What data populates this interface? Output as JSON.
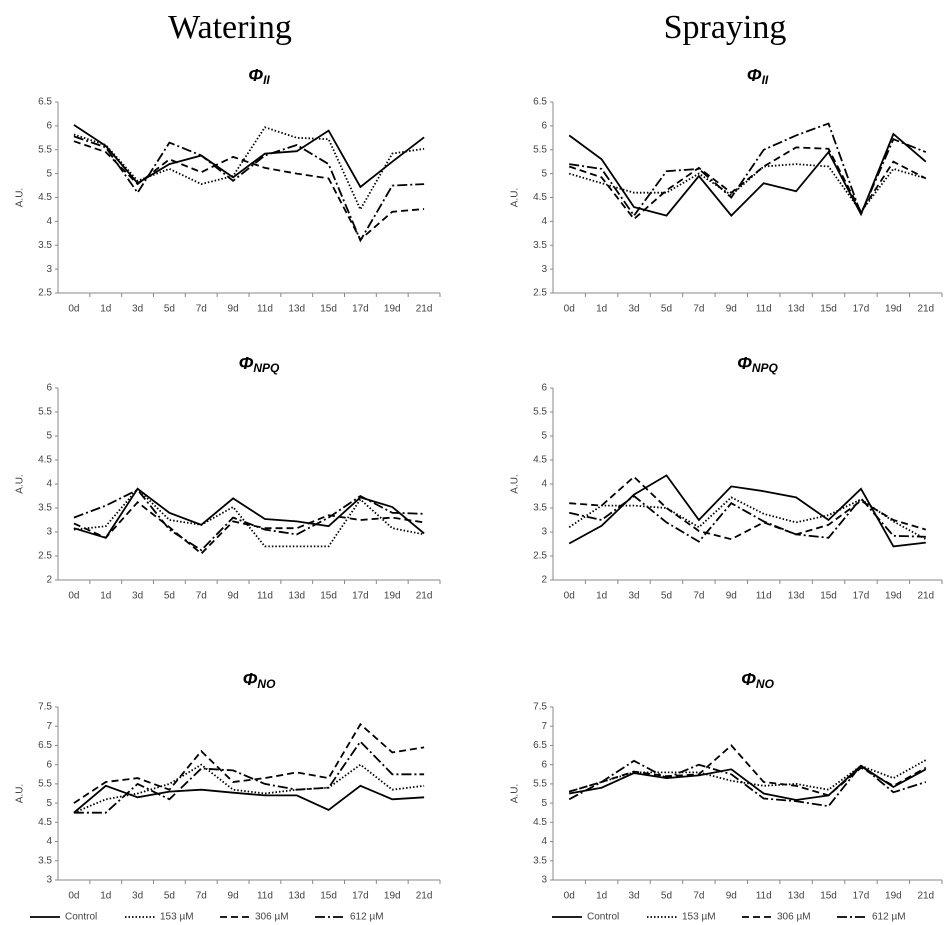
{
  "headings": [
    "Watering",
    "Spraying"
  ],
  "chart_data": [
    {
      "type": "line",
      "title": "Φ",
      "title_subscript": "II",
      "ylabel": "A.U.",
      "categories": [
        "0d",
        "1d",
        "3d",
        "5d",
        "7d",
        "9d",
        "11d",
        "13d",
        "15d",
        "17d",
        "19d",
        "21d"
      ],
      "ylim": [
        2.5,
        6.5
      ],
      "yticks": [
        2.5,
        3,
        3.5,
        4,
        4.5,
        5,
        5.5,
        6,
        6.5
      ],
      "series": [
        {
          "color": "#000000",
          "dash": "solid",
          "values": [
            6.02,
            5.58,
            4.8,
            5.2,
            5.38,
            4.92,
            5.42,
            5.47,
            5.9,
            4.72,
            5.25,
            5.76
          ]
        },
        {
          "color": "#000000",
          "dash": "dotted",
          "values": [
            5.82,
            5.6,
            4.85,
            5.1,
            4.78,
            4.95,
            5.97,
            5.75,
            5.72,
            4.25,
            5.42,
            5.52
          ]
        },
        {
          "color": "#000000",
          "dash": "dashed",
          "values": [
            5.68,
            5.45,
            4.78,
            5.3,
            5.03,
            5.35,
            5.12,
            5.0,
            4.9,
            3.62,
            4.2,
            4.26
          ]
        },
        {
          "color": "#000000",
          "dash": "dashdot",
          "values": [
            5.78,
            5.55,
            4.6,
            5.65,
            5.38,
            4.85,
            5.38,
            5.6,
            5.2,
            3.6,
            4.75,
            4.78
          ]
        }
      ]
    },
    {
      "type": "line",
      "title": "Φ",
      "title_subscript": "II",
      "ylabel": "A.U.",
      "categories": [
        "0d",
        "1d",
        "3d",
        "5d",
        "7d",
        "9d",
        "11d",
        "13d",
        "15d",
        "17d",
        "19d",
        "21d"
      ],
      "ylim": [
        2.5,
        6.5
      ],
      "yticks": [
        2.5,
        3,
        3.5,
        4,
        4.5,
        5,
        5.5,
        6,
        6.5
      ],
      "series": [
        {
          "color": "#000000",
          "dash": "solid",
          "values": [
            5.8,
            5.3,
            4.3,
            4.12,
            4.95,
            4.12,
            4.8,
            4.63,
            5.45,
            4.15,
            5.83,
            5.25
          ]
        },
        {
          "color": "#000000",
          "dash": "dotted",
          "values": [
            5.0,
            4.8,
            4.6,
            4.6,
            5.0,
            4.55,
            5.15,
            5.2,
            5.15,
            4.2,
            5.1,
            4.9
          ]
        },
        {
          "color": "#000000",
          "dash": "dashed",
          "values": [
            5.15,
            4.92,
            4.05,
            4.65,
            5.12,
            4.6,
            5.15,
            5.55,
            5.52,
            4.2,
            5.25,
            4.9
          ]
        },
        {
          "color": "#000000",
          "dash": "dashdot",
          "values": [
            5.2,
            5.1,
            4.12,
            5.05,
            5.1,
            4.5,
            5.5,
            5.8,
            6.05,
            4.15,
            5.72,
            5.45
          ]
        }
      ]
    },
    {
      "type": "line",
      "title": "Φ",
      "title_subscript": "NPQ",
      "ylabel": "A.U.",
      "categories": [
        "0d",
        "1d",
        "3d",
        "5d",
        "7d",
        "9d",
        "11d",
        "13d",
        "15d",
        "17d",
        "19d",
        "21d"
      ],
      "ylim": [
        2,
        6
      ],
      "yticks": [
        2,
        2.5,
        3,
        3.5,
        4,
        4.5,
        5,
        5.5,
        6
      ],
      "series": [
        {
          "color": "#000000",
          "dash": "solid",
          "values": [
            3.08,
            2.88,
            3.9,
            3.4,
            3.15,
            3.7,
            3.27,
            3.22,
            3.12,
            3.72,
            3.52,
            2.97
          ]
        },
        {
          "color": "#000000",
          "dash": "dotted",
          "values": [
            3.05,
            3.12,
            3.9,
            3.25,
            3.15,
            3.52,
            2.7,
            2.7,
            2.7,
            3.68,
            3.08,
            2.95
          ]
        },
        {
          "color": "#000000",
          "dash": "dashed",
          "values": [
            3.18,
            2.88,
            3.62,
            3.1,
            2.55,
            3.22,
            3.08,
            3.08,
            3.35,
            3.25,
            3.3,
            3.2
          ]
        },
        {
          "color": "#000000",
          "dash": "dashdot",
          "values": [
            3.3,
            3.55,
            3.88,
            3.05,
            2.62,
            3.3,
            3.05,
            2.95,
            3.3,
            3.75,
            3.4,
            3.38
          ]
        }
      ]
    },
    {
      "type": "line",
      "title": "Φ",
      "title_subscript": "NPQ",
      "ylabel": "A.U.",
      "categories": [
        "0d",
        "1d",
        "3d",
        "5d",
        "7d",
        "9d",
        "11d",
        "13d",
        "15d",
        "17d",
        "19d",
        "21d"
      ],
      "ylim": [
        2,
        6
      ],
      "yticks": [
        2,
        2.5,
        3,
        3.5,
        4,
        4.5,
        5,
        5.5,
        6
      ],
      "series": [
        {
          "color": "#000000",
          "dash": "solid",
          "values": [
            2.76,
            3.13,
            3.78,
            4.18,
            3.25,
            3.95,
            3.85,
            3.72,
            3.25,
            3.9,
            2.7,
            2.78
          ]
        },
        {
          "color": "#000000",
          "dash": "dotted",
          "values": [
            3.1,
            3.55,
            3.55,
            3.5,
            3.1,
            3.72,
            3.38,
            3.2,
            3.35,
            3.68,
            3.22,
            2.85
          ]
        },
        {
          "color": "#000000",
          "dash": "dashed",
          "values": [
            3.6,
            3.55,
            4.15,
            3.5,
            3.02,
            2.85,
            3.2,
            2.95,
            3.15,
            3.65,
            3.25,
            3.05
          ]
        },
        {
          "color": "#000000",
          "dash": "dashdot",
          "values": [
            3.4,
            3.25,
            3.75,
            3.2,
            2.8,
            3.6,
            3.22,
            2.95,
            2.88,
            3.7,
            2.92,
            2.9
          ]
        }
      ]
    },
    {
      "type": "line",
      "title": "Φ",
      "title_subscript": "NO",
      "ylabel": "A.U.",
      "legend": true,
      "categories": [
        "0d",
        "1d",
        "3d",
        "5d",
        "7d",
        "9d",
        "11d",
        "13d",
        "15d",
        "17d",
        "19d",
        "21d"
      ],
      "ylim": [
        3,
        7.5
      ],
      "yticks": [
        3,
        3.5,
        4,
        4.5,
        5,
        5.5,
        6,
        6.5,
        7,
        7.5
      ],
      "series": [
        {
          "name": "Control",
          "color": "#000000",
          "dash": "solid",
          "values": [
            4.75,
            5.45,
            5.15,
            5.3,
            5.35,
            5.27,
            5.2,
            5.2,
            4.82,
            5.45,
            5.1,
            5.15
          ]
        },
        {
          "name": "153 µM",
          "color": "#000000",
          "dash": "dotted",
          "values": [
            4.75,
            5.1,
            5.25,
            5.5,
            6.0,
            5.35,
            5.25,
            5.35,
            5.4,
            6.0,
            5.35,
            5.45
          ]
        },
        {
          "name": "306 µM",
          "color": "#000000",
          "dash": "dashed",
          "values": [
            5.0,
            5.55,
            5.65,
            5.35,
            6.35,
            5.55,
            5.65,
            5.8,
            5.65,
            7.05,
            6.32,
            6.45
          ]
        },
        {
          "name": "612 µM",
          "color": "#000000",
          "dash": "dashdot",
          "values": [
            4.75,
            4.75,
            5.5,
            5.1,
            5.9,
            5.85,
            5.5,
            5.35,
            5.4,
            6.6,
            5.75,
            5.75
          ]
        }
      ]
    },
    {
      "type": "line",
      "title": "Φ",
      "title_subscript": "NO",
      "ylabel": "A.U.",
      "legend": true,
      "categories": [
        "0d",
        "1d",
        "3d",
        "5d",
        "7d",
        "9d",
        "11d",
        "13d",
        "15d",
        "17d",
        "19d",
        "21d"
      ],
      "ylim": [
        3,
        7.5
      ],
      "yticks": [
        3,
        3.5,
        4,
        4.5,
        5,
        5.5,
        6,
        6.5,
        7,
        7.5
      ],
      "series": [
        {
          "name": "Control",
          "color": "#000000",
          "dash": "solid",
          "values": [
            5.25,
            5.4,
            5.78,
            5.65,
            5.72,
            5.88,
            5.25,
            5.08,
            5.2,
            5.97,
            5.42,
            5.88
          ]
        },
        {
          "name": "153 µM",
          "color": "#000000",
          "dash": "dotted",
          "values": [
            5.3,
            5.55,
            5.8,
            5.8,
            5.8,
            5.58,
            5.45,
            5.5,
            5.35,
            5.97,
            5.65,
            6.12
          ]
        },
        {
          "name": "306 µM",
          "color": "#000000",
          "dash": "dashed",
          "values": [
            5.3,
            5.55,
            5.82,
            5.7,
            5.75,
            6.5,
            5.55,
            5.45,
            5.2,
            5.92,
            5.45,
            5.92
          ]
        },
        {
          "name": "612 µM",
          "color": "#000000",
          "dash": "dashdot",
          "values": [
            5.1,
            5.55,
            6.1,
            5.65,
            6.0,
            5.75,
            5.12,
            5.05,
            4.92,
            5.98,
            5.28,
            5.55
          ]
        }
      ]
    }
  ]
}
